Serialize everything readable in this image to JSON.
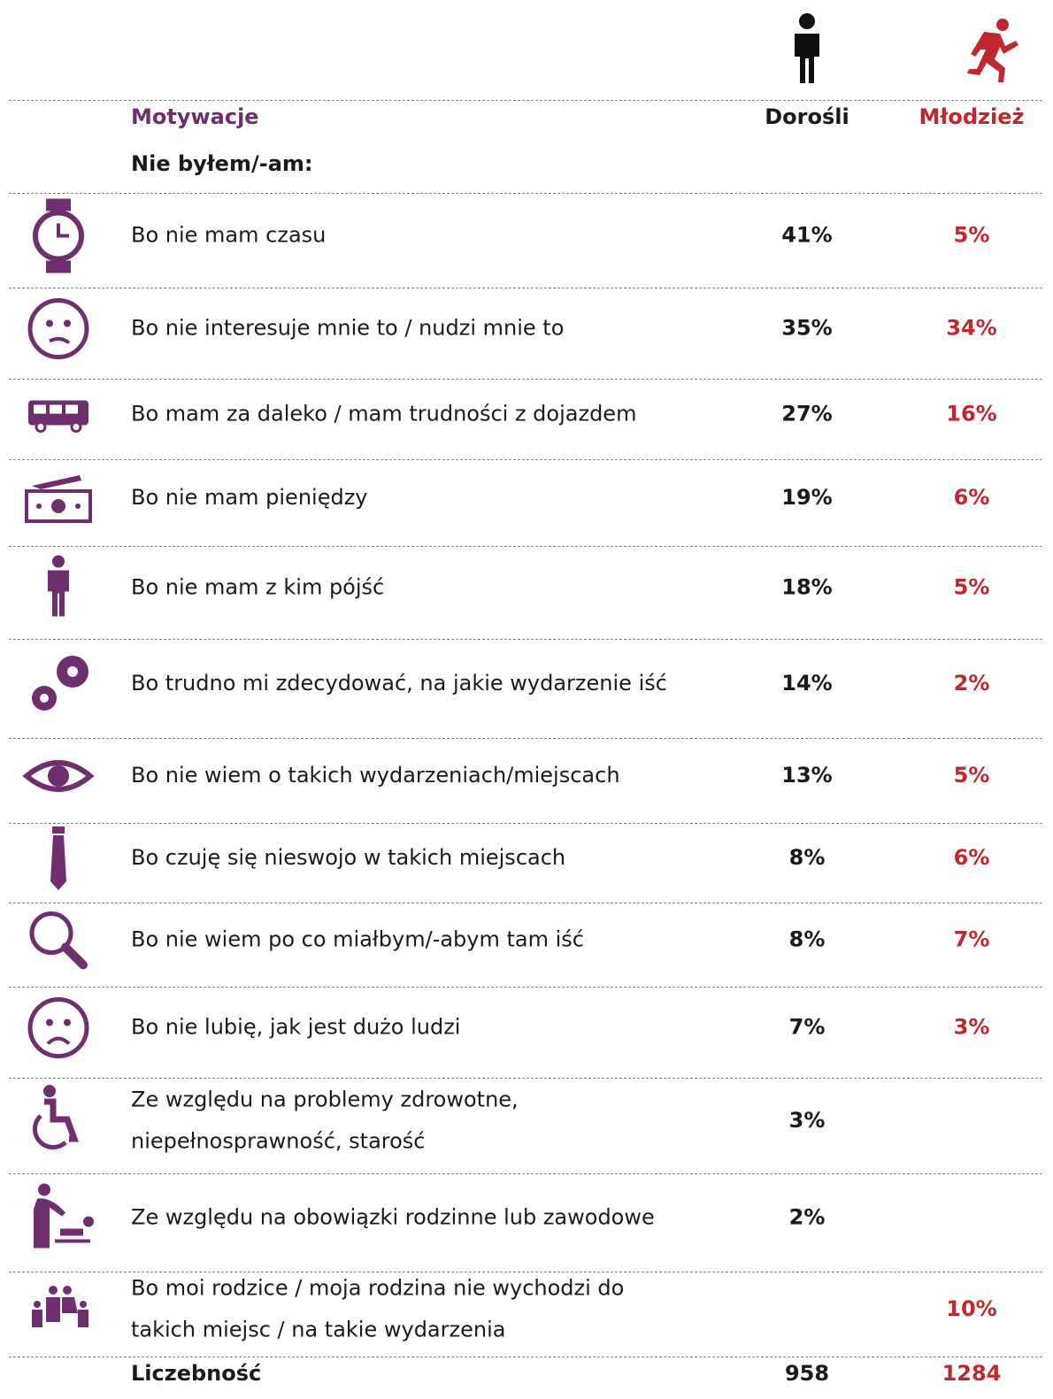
{
  "table": {
    "columns": {
      "label": "Motywacje",
      "adults": "Dorośli",
      "youth": "Młodzież"
    },
    "subheader": "Nie byłem/-am:",
    "rows": [
      {
        "label": [
          "Bo nie mam czasu"
        ],
        "adults": "41%",
        "youth": "5%"
      },
      {
        "label": [
          "Bo nie interesuje mnie to / nudzi mnie to"
        ],
        "adults": "35%",
        "youth": "34%"
      },
      {
        "label": [
          "Bo mam za daleko / mam trudności  z dojazdem"
        ],
        "adults": "27%",
        "youth": "16%"
      },
      {
        "label": [
          "Bo nie mam pieniędzy"
        ],
        "adults": "19%",
        "youth": "6%"
      },
      {
        "label": [
          "Bo nie mam z kim pójść"
        ],
        "adults": "18%",
        "youth": "5%"
      },
      {
        "label": [
          "Bo trudno mi zdecydować, na jakie wydarzenie iść"
        ],
        "adults": "14%",
        "youth": "2%"
      },
      {
        "label": [
          "Bo nie wiem o takich wydarzeniach/miejscach"
        ],
        "adults": "13%",
        "youth": "5%"
      },
      {
        "label": [
          "Bo czuję się nieswojo w takich miejscach"
        ],
        "adults": "8%",
        "youth": "6%"
      },
      {
        "label": [
          "Bo nie wiem po co miałbym/-abym tam iść"
        ],
        "adults": "8%",
        "youth": "7%"
      },
      {
        "label": [
          "Bo nie lubię, jak jest dużo ludzi"
        ],
        "adults": "7%",
        "youth": "3%"
      },
      {
        "label": [
          "Ze względu na problemy zdrowotne,",
          "niepełnosprawność, starość"
        ],
        "adults": "3%",
        "youth": null
      },
      {
        "label": [
          "Ze względu na obowiązki rodzinne lub zawodowe"
        ],
        "adults": "2%",
        "youth": null
      },
      {
        "label": [
          "Bo moi rodzice / moja rodzina nie wychodzi do",
          "takich miejsc / na takie wydarzenia"
        ],
        "adults": null,
        "youth": "10%"
      }
    ],
    "footer": {
      "label": "Liczebność",
      "adults": "958",
      "youth": "1284"
    }
  }
}
